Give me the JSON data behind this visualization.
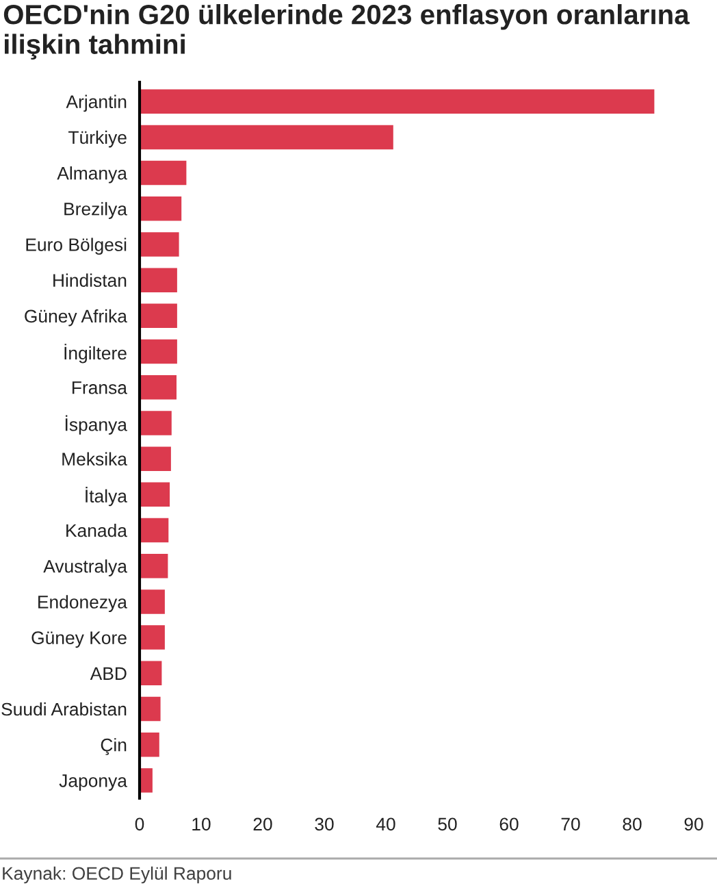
{
  "chart_data": {
    "type": "bar",
    "orientation": "horizontal",
    "title": "OECD'nin G20 ülkelerinde 2023 enflasyon oranlarına ilişkin tahmini",
    "categories": [
      "Arjantin",
      "Türkiye",
      "Almanya",
      "Brezilya",
      "Euro Bölgesi",
      "Hindistan",
      "Güney Afrika",
      "İngiltere",
      "Fransa",
      "İspanya",
      "Meksika",
      "İtalya",
      "Kanada",
      "Avustralya",
      "Endonezya",
      "Güney Kore",
      "ABD",
      "Suudi Arabistan",
      "Çin",
      "Japonya"
    ],
    "values": [
      83.6,
      41.2,
      7.6,
      6.8,
      6.4,
      6.1,
      6.1,
      6.1,
      6.0,
      5.2,
      5.1,
      4.9,
      4.7,
      4.6,
      4.1,
      4.1,
      3.6,
      3.4,
      3.2,
      2.1
    ],
    "color": "#dc3a4e",
    "xlim": [
      0,
      90
    ],
    "xticks": [
      0,
      10,
      20,
      30,
      40,
      50,
      60,
      70,
      80,
      90
    ],
    "annotations": [
      "Kaynak: OECD Eylül Raporu"
    ]
  }
}
